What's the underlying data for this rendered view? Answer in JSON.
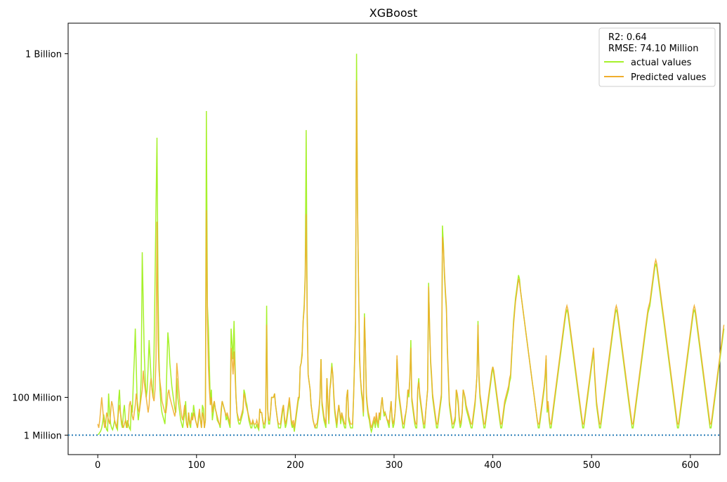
{
  "chart_data": {
    "type": "line",
    "title": "XGBoost",
    "xlabel": "",
    "ylabel": "",
    "xlim": [
      -30,
      630
    ],
    "ylim": [
      -50000000,
      1080000000
    ],
    "x_ticks": [
      0,
      100,
      200,
      300,
      400,
      500,
      600
    ],
    "y_ticks": [
      {
        "value": 1000000,
        "label": "1 Million"
      },
      {
        "value": 100000000,
        "label": "100 Million"
      },
      {
        "value": 1000000000,
        "label": "1 Billion"
      }
    ],
    "reference_line": {
      "value": 1000000,
      "style": "dotted",
      "color": "#1f77b4"
    },
    "annotation": {
      "r2": "R2: 0.64",
      "rmse": "RMSE: 74.10 Million"
    },
    "legend_position": "top-right",
    "series_points": 600,
    "series": [
      {
        "name": "actual values",
        "color": "#a6f12b",
        "values": [
          2,
          4,
          8,
          12,
          20,
          35,
          55,
          40,
          25,
          15,
          12,
          110,
          60,
          30,
          20,
          15,
          25,
          40,
          30,
          20,
          15,
          90,
          120,
          60,
          30,
          20,
          60,
          80,
          40,
          20,
          40,
          30,
          20,
          15,
          80,
          60,
          140,
          200,
          280,
          180,
          80,
          40,
          60,
          90,
          150,
          480,
          350,
          220,
          150,
          100,
          120,
          180,
          250,
          200,
          150,
          120,
          100,
          220,
          400,
          600,
          780,
          380,
          200,
          120,
          80,
          60,
          50,
          40,
          30,
          80,
          180,
          270,
          240,
          190,
          160,
          130,
          110,
          90,
          70,
          60,
          150,
          100,
          80,
          60,
          40,
          30,
          20,
          40,
          60,
          90,
          30,
          20,
          60,
          30,
          20,
          60,
          40,
          80,
          60,
          40,
          30,
          20,
          40,
          60,
          40,
          20,
          80,
          70,
          20,
          40,
          850,
          340,
          280,
          180,
          80,
          120,
          40,
          60,
          90,
          70,
          60,
          40,
          35,
          30,
          20,
          60,
          90,
          80,
          70,
          60,
          40,
          50,
          40,
          30,
          20,
          280,
          240,
          200,
          300,
          190,
          100,
          60,
          40,
          30,
          30,
          40,
          50,
          60,
          120,
          110,
          90,
          80,
          60,
          40,
          30,
          20,
          20,
          40,
          30,
          20,
          20,
          30,
          20,
          15,
          70,
          60,
          60,
          40,
          20,
          20,
          40,
          340,
          70,
          30,
          30,
          60,
          100,
          100,
          100,
          110,
          80,
          60,
          40,
          20,
          20,
          20,
          40,
          60,
          80,
          40,
          20,
          30,
          50,
          70,
          90,
          60,
          30,
          20,
          30,
          10,
          30,
          50,
          70,
          90,
          100,
          180,
          190,
          220,
          300,
          340,
          420,
          800,
          320,
          160,
          140,
          120,
          80,
          60,
          40,
          30,
          20,
          20,
          20,
          40,
          60,
          100,
          200,
          80,
          60,
          40,
          30,
          20,
          150,
          80,
          30,
          120,
          150,
          190,
          160,
          100,
          60,
          40,
          20,
          50,
          80,
          60,
          30,
          60,
          40,
          30,
          20,
          20,
          100,
          120,
          40,
          30,
          20,
          20,
          20,
          100,
          200,
          300,
          1000,
          600,
          400,
          200,
          150,
          110,
          90,
          50,
          320,
          230,
          100,
          70,
          50,
          40,
          20,
          10,
          20,
          30,
          40,
          20,
          50,
          30,
          20,
          60,
          40,
          80,
          100,
          70,
          50,
          60,
          50,
          40,
          30,
          20,
          60,
          90,
          40,
          20,
          30,
          60,
          100,
          200,
          140,
          100,
          80,
          60,
          40,
          20,
          20,
          40,
          60,
          80,
          120,
          100,
          150,
          250,
          90,
          70,
          50,
          30,
          20,
          20,
          120,
          150,
          100,
          80,
          60,
          40,
          20,
          20,
          60,
          90,
          120,
          400,
          280,
          190,
          150,
          100,
          80,
          60,
          40,
          20,
          20,
          40,
          60,
          80,
          100,
          550,
          500,
          420,
          370,
          330,
          220,
          150,
          80,
          60,
          40,
          20,
          20,
          30,
          40,
          120,
          100,
          80,
          40,
          20,
          30,
          60,
          120,
          110,
          90,
          70,
          60,
          50,
          40,
          30,
          20,
          20,
          40,
          60,
          80,
          120,
          160,
          300,
          150,
          100,
          80,
          60,
          40,
          20,
          20,
          40,
          60,
          80,
          100,
          120,
          140,
          160,
          180,
          160,
          140,
          120,
          100,
          80,
          60,
          40,
          20,
          20,
          40,
          60,
          80,
          90,
          100,
          110,
          120,
          140,
          150,
          200,
          250,
          300,
          330,
          360,
          380,
          400,
          420,
          410,
          380,
          360,
          340,
          320,
          300,
          280,
          260,
          240,
          220,
          200,
          180,
          160,
          140,
          120,
          100,
          80,
          60,
          40,
          20,
          20,
          40,
          60,
          80,
          100,
          120,
          150,
          200,
          60,
          80,
          40,
          20,
          20,
          40,
          60,
          80,
          100,
          120,
          140,
          160,
          180,
          200,
          220,
          240,
          260,
          280,
          300,
          320,
          330,
          320,
          300,
          280,
          260,
          240,
          220,
          200,
          180,
          160,
          140,
          120,
          100,
          80,
          60,
          40,
          20,
          20,
          40,
          60,
          80,
          100,
          120,
          140,
          160,
          180,
          200,
          220,
          160,
          120,
          80,
          60,
          40,
          20,
          20,
          40,
          60,
          80,
          100,
          120,
          140,
          160,
          180,
          200,
          220,
          240,
          260,
          280,
          300,
          320,
          330,
          320,
          300,
          280,
          260,
          240,
          220,
          200,
          180,
          160,
          140,
          120,
          100,
          80,
          60,
          40,
          20,
          20,
          40,
          60,
          80,
          100,
          120,
          140,
          160,
          180,
          200,
          220,
          240,
          260,
          280,
          300,
          320,
          330,
          340,
          360,
          380,
          400,
          420,
          440,
          450,
          440,
          420,
          400,
          380,
          360,
          340,
          320,
          300,
          280,
          260,
          240,
          220,
          200,
          180,
          160,
          140,
          120,
          100,
          80,
          60,
          40,
          20,
          20,
          40,
          60,
          80,
          100,
          120,
          140,
          160,
          180,
          200,
          220,
          240,
          260,
          280,
          300,
          320,
          330,
          320,
          300,
          280,
          260,
          240,
          220,
          200,
          180,
          160,
          140,
          120,
          100,
          80,
          60,
          40,
          20,
          20,
          40,
          60,
          80,
          100,
          120,
          140,
          160,
          180,
          200,
          220,
          240,
          260,
          280
        ]
      },
      {
        "name": "Predicted values",
        "color": "#f0ae2d",
        "values": [
          30,
          20,
          40,
          70,
          100,
          70,
          40,
          20,
          30,
          60,
          50,
          40,
          30,
          60,
          90,
          80,
          60,
          40,
          30,
          20,
          40,
          60,
          80,
          60,
          40,
          30,
          20,
          30,
          40,
          30,
          20,
          40,
          80,
          90,
          70,
          50,
          40,
          60,
          80,
          110,
          90,
          70,
          60,
          80,
          100,
          120,
          170,
          140,
          120,
          100,
          80,
          60,
          80,
          130,
          150,
          120,
          100,
          90,
          120,
          200,
          560,
          250,
          170,
          140,
          120,
          90,
          80,
          70,
          60,
          60,
          80,
          110,
          120,
          100,
          90,
          80,
          70,
          60,
          50,
          70,
          190,
          160,
          120,
          90,
          70,
          50,
          40,
          60,
          80,
          50,
          30,
          20,
          60,
          40,
          30,
          50,
          40,
          60,
          50,
          40,
          30,
          20,
          50,
          70,
          40,
          20,
          60,
          50,
          20,
          40,
          590,
          300,
          180,
          120,
          80,
          100,
          60,
          80,
          90,
          70,
          60,
          50,
          40,
          30,
          30,
          70,
          90,
          80,
          70,
          60,
          50,
          60,
          50,
          40,
          30,
          230,
          200,
          160,
          220,
          160,
          100,
          60,
          50,
          40,
          40,
          50,
          60,
          70,
          110,
          100,
          80,
          70,
          60,
          50,
          40,
          30,
          30,
          40,
          30,
          30,
          30,
          40,
          30,
          20,
          70,
          60,
          60,
          40,
          30,
          30,
          50,
          290,
          70,
          40,
          40,
          60,
          100,
          100,
          100,
          110,
          80,
          60,
          40,
          30,
          30,
          30,
          50,
          70,
          80,
          50,
          30,
          40,
          60,
          80,
          100,
          70,
          40,
          30,
          40,
          20,
          40,
          60,
          80,
          100,
          100,
          180,
          190,
          210,
          300,
          330,
          410,
          580,
          320,
          160,
          140,
          120,
          80,
          60,
          40,
          30,
          20,
          30,
          30,
          50,
          70,
          100,
          200,
          90,
          70,
          50,
          40,
          30,
          150,
          90,
          40,
          120,
          140,
          180,
          160,
          110,
          70,
          50,
          30,
          60,
          80,
          60,
          40,
          60,
          50,
          40,
          30,
          30,
          100,
          120,
          50,
          40,
          30,
          30,
          30,
          100,
          190,
          290,
          930,
          600,
          400,
          220,
          150,
          120,
          100,
          60,
          310,
          230,
          110,
          80,
          60,
          50,
          30,
          20,
          30,
          40,
          50,
          30,
          60,
          40,
          30,
          60,
          50,
          80,
          100,
          70,
          60,
          60,
          50,
          40,
          40,
          30,
          60,
          90,
          50,
          30,
          40,
          60,
          110,
          210,
          150,
          110,
          90,
          70,
          50,
          30,
          30,
          50,
          60,
          80,
          120,
          110,
          150,
          230,
          100,
          80,
          60,
          40,
          30,
          30,
          120,
          140,
          110,
          90,
          70,
          50,
          30,
          30,
          60,
          90,
          120,
          390,
          290,
          200,
          160,
          110,
          90,
          70,
          50,
          30,
          30,
          50,
          70,
          90,
          110,
          520,
          490,
          430,
          380,
          340,
          230,
          160,
          90,
          70,
          50,
          30,
          30,
          40,
          50,
          120,
          110,
          90,
          50,
          30,
          40,
          60,
          120,
          110,
          100,
          80,
          70,
          60,
          50,
          40,
          30,
          30,
          50,
          70,
          90,
          120,
          160,
          290,
          160,
          110,
          90,
          70,
          50,
          30,
          30,
          50,
          70,
          90,
          110,
          130,
          150,
          170,
          180,
          170,
          150,
          130,
          110,
          90,
          70,
          50,
          30,
          30,
          50,
          70,
          90,
          100,
          110,
          120,
          130,
          150,
          160,
          210,
          250,
          290,
          320,
          350,
          370,
          390,
          410,
          400,
          380,
          360,
          340,
          320,
          300,
          280,
          260,
          240,
          220,
          200,
          180,
          160,
          140,
          120,
          100,
          80,
          60,
          40,
          30,
          30,
          50,
          70,
          90,
          110,
          130,
          160,
          210,
          70,
          90,
          50,
          30,
          30,
          50,
          70,
          90,
          110,
          130,
          150,
          170,
          190,
          210,
          230,
          250,
          270,
          290,
          310,
          330,
          340,
          330,
          310,
          290,
          270,
          250,
          230,
          210,
          190,
          170,
          150,
          130,
          110,
          90,
          70,
          50,
          30,
          30,
          50,
          70,
          90,
          110,
          130,
          150,
          170,
          190,
          210,
          230,
          170,
          130,
          90,
          70,
          50,
          30,
          30,
          50,
          70,
          90,
          110,
          130,
          150,
          170,
          190,
          210,
          230,
          250,
          270,
          290,
          310,
          330,
          340,
          330,
          310,
          290,
          270,
          250,
          230,
          210,
          190,
          170,
          150,
          130,
          110,
          90,
          70,
          50,
          30,
          30,
          50,
          70,
          90,
          110,
          130,
          150,
          170,
          190,
          210,
          230,
          250,
          270,
          290,
          310,
          330,
          340,
          350,
          370,
          390,
          410,
          430,
          450,
          460,
          450,
          430,
          410,
          390,
          370,
          350,
          330,
          310,
          290,
          270,
          250,
          230,
          210,
          190,
          170,
          150,
          130,
          110,
          90,
          70,
          50,
          30,
          30,
          50,
          70,
          90,
          110,
          130,
          150,
          170,
          190,
          210,
          230,
          250,
          270,
          290,
          310,
          330,
          340,
          330,
          310,
          290,
          270,
          250,
          230,
          210,
          190,
          170,
          150,
          130,
          110,
          90,
          70,
          50,
          30,
          30,
          50,
          70,
          90,
          110,
          130,
          150,
          170,
          190,
          210,
          230,
          250,
          270,
          290
        ]
      }
    ]
  }
}
